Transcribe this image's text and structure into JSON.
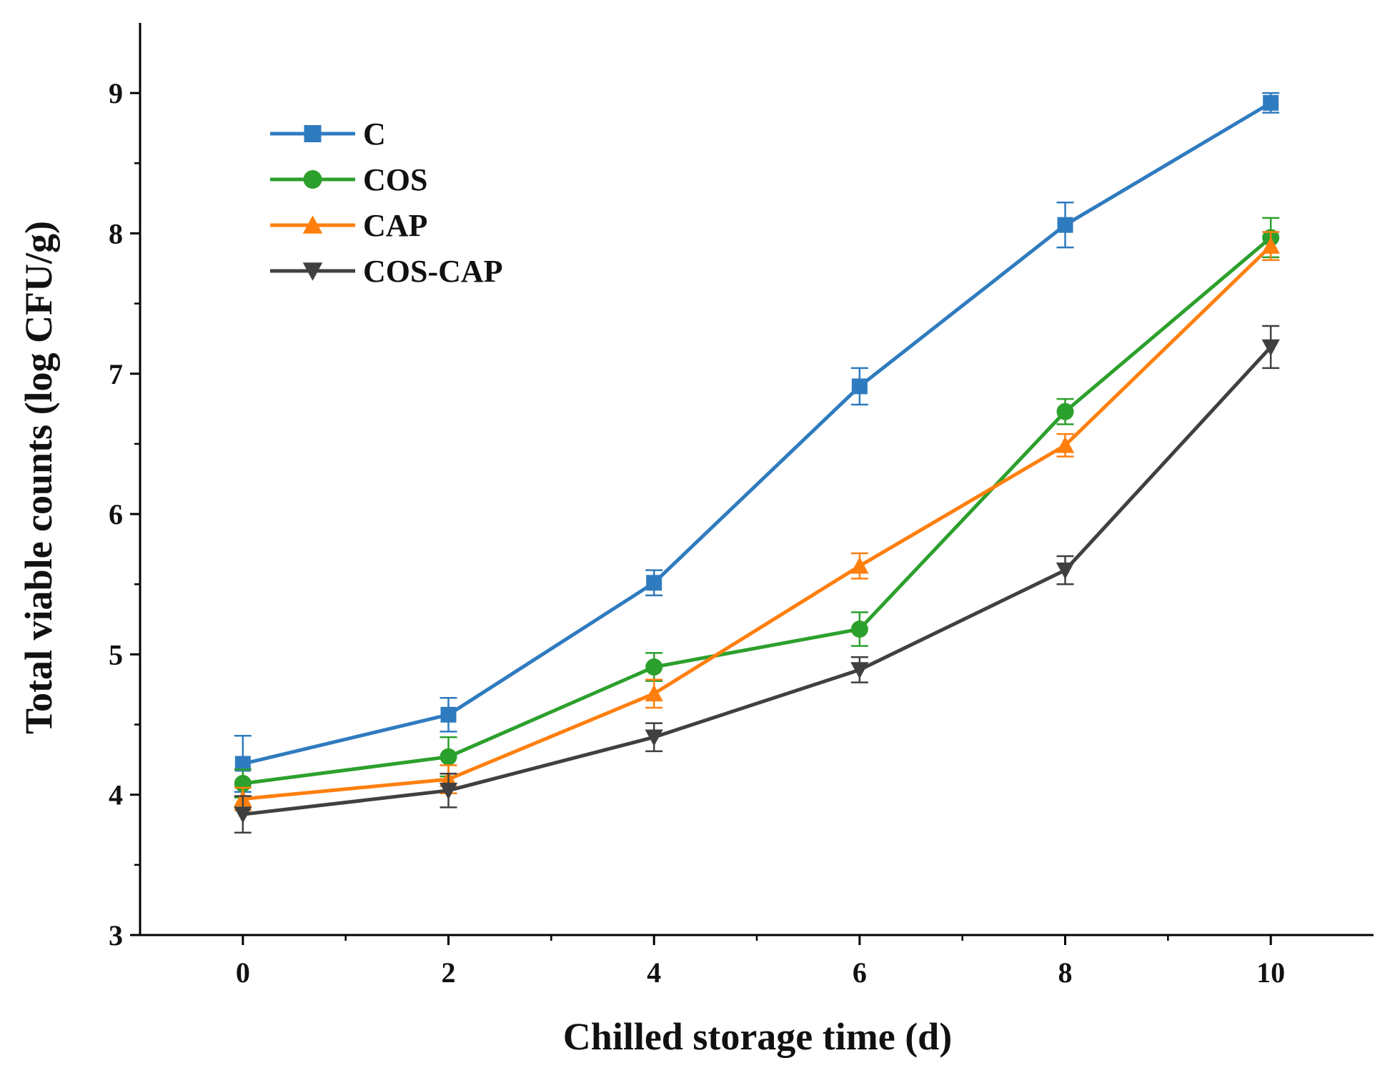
{
  "chart_data": {
    "type": "line",
    "title": "",
    "xlabel": "Chilled storage time (d)",
    "ylabel": "Total viable counts (log CFU/g)",
    "x": [
      0,
      2,
      4,
      6,
      8,
      10
    ],
    "xticks": [
      "0",
      "2",
      "4",
      "6",
      "8",
      "10"
    ],
    "yticks": [
      "3",
      "4",
      "5",
      "6",
      "7",
      "8",
      "9"
    ],
    "xlim": [
      -1,
      11
    ],
    "ylim": [
      3,
      9.5
    ],
    "grid": false,
    "legend_position": "top-left",
    "series": [
      {
        "name": "C",
        "marker": "square",
        "color": "#2f7bbf",
        "values": [
          4.22,
          4.57,
          5.51,
          6.91,
          8.06,
          8.93
        ],
        "errors": [
          0.2,
          0.12,
          0.09,
          0.13,
          0.16,
          0.07
        ]
      },
      {
        "name": "COS",
        "marker": "circle",
        "color": "#2ca02c",
        "values": [
          4.08,
          4.27,
          4.91,
          5.18,
          6.73,
          7.97
        ],
        "errors": [
          0.1,
          0.14,
          0.1,
          0.12,
          0.09,
          0.14
        ]
      },
      {
        "name": "CAP",
        "marker": "triangle-up",
        "color": "#ff7f0e",
        "values": [
          3.97,
          4.11,
          4.72,
          5.63,
          6.49,
          7.91
        ],
        "errors": [
          0.08,
          0.1,
          0.1,
          0.09,
          0.08,
          0.1
        ]
      },
      {
        "name": "COS-CAP",
        "marker": "triangle-down",
        "color": "#404040",
        "values": [
          3.86,
          4.03,
          4.41,
          4.89,
          5.6,
          7.19
        ],
        "errors": [
          0.13,
          0.12,
          0.1,
          0.09,
          0.1,
          0.15
        ]
      }
    ]
  }
}
